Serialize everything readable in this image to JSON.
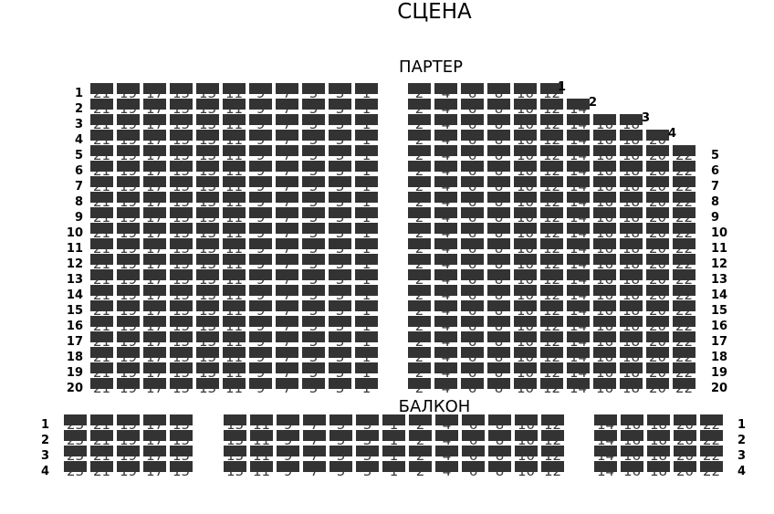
{
  "stage_label": "СЦЕНА",
  "parterre": {
    "label": "ПАРТЕР",
    "left_seats": [
      "21",
      "19",
      "17",
      "15",
      "13",
      "11",
      "9",
      "7",
      "5",
      "3",
      "1"
    ],
    "rows": [
      {
        "label": "1",
        "right_seats": [
          "2",
          "4",
          "6",
          "8",
          "10",
          "12"
        ]
      },
      {
        "label": "2",
        "right_seats": [
          "2",
          "4",
          "6",
          "8",
          "10",
          "12",
          "14"
        ]
      },
      {
        "label": "3",
        "right_seats": [
          "2",
          "4",
          "6",
          "8",
          "10",
          "12",
          "14",
          "16",
          "18"
        ]
      },
      {
        "label": "4",
        "right_seats": [
          "2",
          "4",
          "6",
          "8",
          "10",
          "12",
          "14",
          "16",
          "18",
          "20"
        ]
      },
      {
        "label": "5",
        "right_seats": [
          "2",
          "4",
          "6",
          "8",
          "10",
          "12",
          "14",
          "16",
          "18",
          "20",
          "22"
        ]
      },
      {
        "label": "6",
        "right_seats": [
          "2",
          "4",
          "6",
          "8",
          "10",
          "12",
          "14",
          "16",
          "18",
          "20",
          "22"
        ]
      },
      {
        "label": "7",
        "right_seats": [
          "2",
          "4",
          "6",
          "8",
          "10",
          "12",
          "14",
          "16",
          "18",
          "20",
          "22"
        ]
      },
      {
        "label": "8",
        "right_seats": [
          "2",
          "4",
          "6",
          "8",
          "10",
          "12",
          "14",
          "16",
          "18",
          "20",
          "22"
        ]
      },
      {
        "label": "9",
        "right_seats": [
          "2",
          "4",
          "6",
          "8",
          "10",
          "12",
          "14",
          "16",
          "18",
          "20",
          "22"
        ]
      },
      {
        "label": "10",
        "right_seats": [
          "2",
          "4",
          "6",
          "8",
          "10",
          "12",
          "14",
          "16",
          "18",
          "20",
          "22"
        ]
      },
      {
        "label": "11",
        "right_seats": [
          "2",
          "4",
          "6",
          "8",
          "10",
          "12",
          "14",
          "16",
          "18",
          "20",
          "22"
        ]
      },
      {
        "label": "12",
        "right_seats": [
          "2",
          "4",
          "6",
          "8",
          "10",
          "12",
          "14",
          "16",
          "18",
          "20",
          "22"
        ]
      },
      {
        "label": "13",
        "right_seats": [
          "2",
          "4",
          "6",
          "8",
          "10",
          "12",
          "14",
          "16",
          "18",
          "20",
          "22"
        ]
      },
      {
        "label": "14",
        "right_seats": [
          "2",
          "4",
          "6",
          "8",
          "10",
          "12",
          "14",
          "16",
          "18",
          "20",
          "22"
        ]
      },
      {
        "label": "15",
        "right_seats": [
          "2",
          "4",
          "6",
          "8",
          "10",
          "12",
          "14",
          "16",
          "18",
          "20",
          "22"
        ]
      },
      {
        "label": "16",
        "right_seats": [
          "2",
          "4",
          "6",
          "8",
          "10",
          "12",
          "14",
          "16",
          "18",
          "20",
          "22"
        ]
      },
      {
        "label": "17",
        "right_seats": [
          "2",
          "4",
          "6",
          "8",
          "10",
          "12",
          "14",
          "16",
          "18",
          "20",
          "22"
        ]
      },
      {
        "label": "18",
        "right_seats": [
          "2",
          "4",
          "6",
          "8",
          "10",
          "12",
          "14",
          "16",
          "18",
          "20",
          "22"
        ]
      },
      {
        "label": "19",
        "right_seats": [
          "2",
          "4",
          "6",
          "8",
          "10",
          "12",
          "14",
          "16",
          "18",
          "20",
          "22"
        ]
      },
      {
        "label": "20",
        "right_seats": [
          "2",
          "4",
          "6",
          "8",
          "10",
          "12",
          "14",
          "16",
          "18",
          "20",
          "22"
        ]
      }
    ]
  },
  "balcony": {
    "label": "БАЛКОН",
    "rows": [
      "1",
      "2",
      "3",
      "4"
    ],
    "left_group": [
      "23",
      "21",
      "19",
      "17",
      "15"
    ],
    "middle_group": [
      "13",
      "11",
      "9",
      "7",
      "5",
      "3",
      "1",
      "2",
      "4",
      "6",
      "8",
      "10",
      "12"
    ],
    "right_group": [
      "14",
      "16",
      "18",
      "20",
      "22"
    ]
  },
  "seat_color": "#333333"
}
